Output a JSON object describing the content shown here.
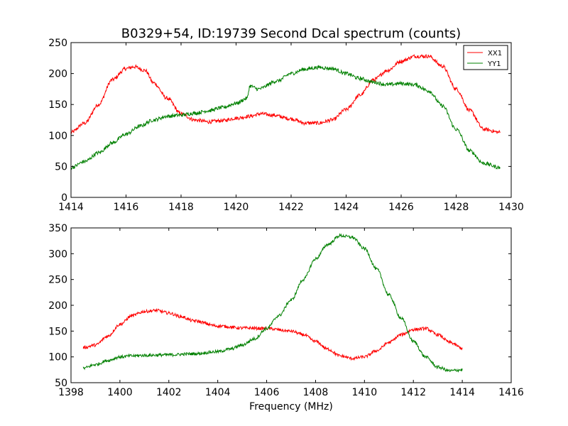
{
  "colors": {
    "xx": "#ff0000",
    "yy": "#008000",
    "axis": "#000000",
    "background": "#ffffff"
  },
  "chart_data": [
    {
      "type": "line",
      "title": "B0329+54, ID:19739 Second Dcal spectrum (counts)",
      "xlabel": "",
      "ylabel": "",
      "xlim": [
        1414,
        1430
      ],
      "ylim": [
        0,
        250
      ],
      "xticks": [
        1414,
        1416,
        1418,
        1420,
        1422,
        1424,
        1426,
        1428,
        1430
      ],
      "yticks": [
        0,
        50,
        100,
        150,
        200,
        250
      ],
      "grid": false,
      "legend": {
        "location": "top-right",
        "entries": [
          "XX1",
          "YY1"
        ]
      },
      "noise_level": 3,
      "series": [
        {
          "name": "XX1",
          "color": "#ff0000",
          "x": [
            1414.0,
            1414.5,
            1415.0,
            1415.5,
            1416.0,
            1416.3,
            1416.7,
            1417.0,
            1417.5,
            1418.0,
            1418.5,
            1419.0,
            1419.5,
            1420.0,
            1420.5,
            1420.9,
            1421.3,
            1422.0,
            1422.5,
            1423.0,
            1423.5,
            1424.0,
            1424.5,
            1425.0,
            1425.5,
            1426.0,
            1426.5,
            1427.0,
            1427.5,
            1428.0,
            1428.5,
            1429.0,
            1429.6
          ],
          "y": [
            105,
            120,
            150,
            190,
            208,
            211,
            205,
            185,
            160,
            135,
            125,
            122,
            124,
            128,
            131,
            135,
            133,
            127,
            120,
            120,
            125,
            142,
            165,
            190,
            205,
            220,
            228,
            228,
            212,
            175,
            140,
            110,
            105
          ]
        },
        {
          "name": "YY1",
          "color": "#008000",
          "x": [
            1414.0,
            1414.5,
            1415.0,
            1415.5,
            1416.0,
            1416.5,
            1417.0,
            1417.5,
            1418.0,
            1418.5,
            1419.0,
            1419.5,
            1420.0,
            1420.4,
            1420.5,
            1420.8,
            1421.5,
            1422.0,
            1422.5,
            1423.0,
            1423.5,
            1424.0,
            1424.5,
            1425.0,
            1425.5,
            1426.0,
            1426.5,
            1427.0,
            1427.5,
            1428.0,
            1428.5,
            1429.0,
            1429.6
          ],
          "y": [
            48,
            58,
            72,
            88,
            102,
            115,
            125,
            131,
            133,
            136,
            140,
            145,
            152,
            160,
            180,
            175,
            188,
            200,
            207,
            210,
            208,
            200,
            192,
            186,
            182,
            184,
            182,
            172,
            148,
            110,
            75,
            55,
            48
          ]
        }
      ]
    },
    {
      "type": "line",
      "title": "",
      "xlabel": "Frequency (MHz)",
      "ylabel": "",
      "xlim": [
        1398,
        1416
      ],
      "ylim": [
        50,
        350
      ],
      "xticks": [
        1398,
        1400,
        1402,
        1404,
        1406,
        1408,
        1410,
        1412,
        1414,
        1416
      ],
      "yticks": [
        50,
        100,
        150,
        200,
        250,
        300,
        350
      ],
      "grid": false,
      "noise_level": 3,
      "series": [
        {
          "name": "XX1",
          "color": "#ff0000",
          "x": [
            1398.5,
            1399.0,
            1399.5,
            1400.0,
            1400.5,
            1401.0,
            1401.5,
            1402.0,
            1402.5,
            1403.0,
            1404.0,
            1405.0,
            1406.0,
            1407.0,
            1407.5,
            1408.0,
            1408.5,
            1409.0,
            1409.5,
            1410.0,
            1410.5,
            1411.0,
            1411.5,
            1412.0,
            1412.5,
            1413.0,
            1413.5,
            1414.0
          ],
          "y": [
            118,
            123,
            140,
            163,
            180,
            188,
            190,
            185,
            178,
            170,
            160,
            156,
            155,
            150,
            143,
            130,
            115,
            102,
            97,
            100,
            112,
            128,
            143,
            153,
            155,
            143,
            128,
            117
          ]
        },
        {
          "name": "YY1",
          "color": "#008000",
          "x": [
            1398.5,
            1399.0,
            1399.5,
            1400.0,
            1400.5,
            1401.0,
            1402.0,
            1403.0,
            1404.0,
            1404.5,
            1405.0,
            1405.5,
            1406.0,
            1406.5,
            1407.0,
            1407.5,
            1408.0,
            1408.5,
            1409.0,
            1409.5,
            1410.0,
            1410.5,
            1411.0,
            1411.5,
            1412.0,
            1412.5,
            1413.0,
            1413.5,
            1414.0
          ],
          "y": [
            78,
            85,
            93,
            100,
            102,
            103,
            104,
            106,
            110,
            115,
            123,
            135,
            155,
            180,
            210,
            250,
            290,
            318,
            335,
            332,
            310,
            270,
            220,
            175,
            130,
            100,
            80,
            73,
            75
          ]
        }
      ]
    }
  ]
}
